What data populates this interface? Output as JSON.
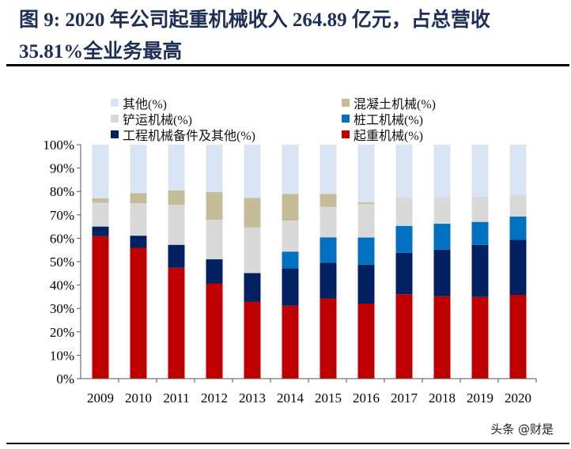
{
  "title_line1": "图 9:  2020 年公司起重机械收入 264.89 亿元，占总营收",
  "title_line2": "35.81%全业务最高",
  "watermark": "头条 @财是",
  "chart_data": {
    "type": "bar",
    "stacked": true,
    "categories": [
      "2009",
      "2010",
      "2011",
      "2012",
      "2013",
      "2014",
      "2015",
      "2016",
      "2017",
      "2018",
      "2019",
      "2020"
    ],
    "ylim": [
      0,
      100
    ],
    "yticks": [
      "0%",
      "10%",
      "20%",
      "30%",
      "40%",
      "50%",
      "60%",
      "70%",
      "80%",
      "90%",
      "100%"
    ],
    "grid": false,
    "legend_placement": "top",
    "series": [
      {
        "name": "起重机械(%)",
        "color": "#c00000",
        "values": [
          60.9,
          55.9,
          47.4,
          40.7,
          32.8,
          31.2,
          34.3,
          32.1,
          36.1,
          35.2,
          34.9,
          35.81
        ]
      },
      {
        "name": "工程机械备件及其他(%)",
        "color": "#002060",
        "values": [
          4.1,
          5.2,
          9.8,
          10.3,
          12.3,
          15.9,
          15.3,
          16.6,
          17.7,
          19.9,
          22.3,
          23.5
        ]
      },
      {
        "name": "桩工机械(%)",
        "color": "#0070c0",
        "values": [
          0,
          0,
          0,
          0,
          0,
          7.2,
          10.8,
          11.6,
          11.5,
          11.1,
          9.8,
          10.0
        ]
      },
      {
        "name": "铲运机械(%)",
        "color": "#d9d9d9",
        "values": [
          10.2,
          13.9,
          17.1,
          16.9,
          19.5,
          13.2,
          13.0,
          14.4,
          12.3,
          11.4,
          10.8,
          8.9
        ]
      },
      {
        "name": "混凝土机械(%)",
        "color": "#c4bd97",
        "values": [
          1.9,
          4.3,
          6.1,
          11.9,
          12.7,
          11.4,
          5.5,
          0.7,
          0,
          0,
          0,
          0
        ]
      },
      {
        "name": "其他(%)",
        "color": "#dae5f4",
        "values": [
          22.9,
          20.7,
          19.6,
          20.2,
          22.7,
          21.1,
          21.1,
          24.6,
          22.4,
          22.4,
          22.2,
          21.8
        ]
      }
    ]
  }
}
